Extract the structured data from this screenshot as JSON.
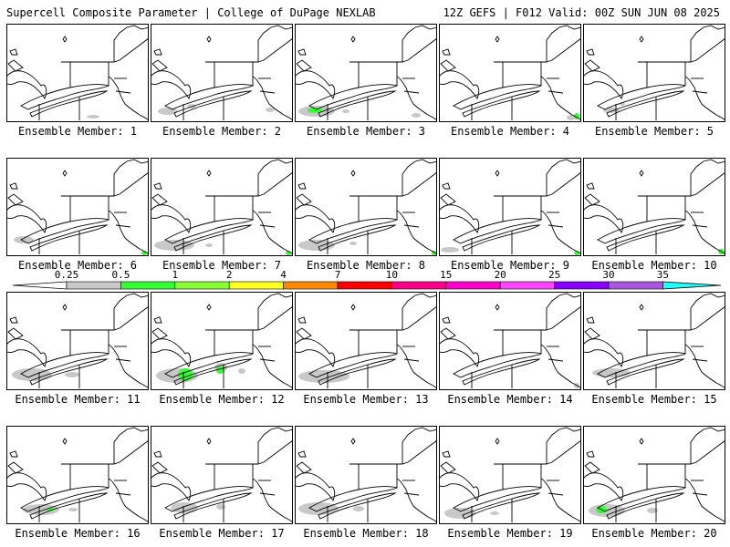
{
  "header": {
    "left": "Supercell Composite Parameter | College of DuPage NEXLAB",
    "right": "12Z GEFS | F012 Valid: 00Z SUN JUN 08 2025"
  },
  "member_label_prefix": "Ensemble Member:",
  "members": [
    {
      "id": 1,
      "label": "Ensemble Member: 1",
      "coverage": "minimal"
    },
    {
      "id": 2,
      "label": "Ensemble Member: 2",
      "coverage": "light"
    },
    {
      "id": 3,
      "label": "Ensemble Member: 3",
      "coverage": "light with 0.5-1 core"
    },
    {
      "id": 4,
      "label": "Ensemble Member: 4",
      "coverage": "minimal"
    },
    {
      "id": 5,
      "label": "Ensemble Member: 5",
      "coverage": "light"
    },
    {
      "id": 6,
      "label": "Ensemble Member: 6",
      "coverage": "light"
    },
    {
      "id": 7,
      "label": "Ensemble Member: 7",
      "coverage": "light"
    },
    {
      "id": 8,
      "label": "Ensemble Member: 8",
      "coverage": "light"
    },
    {
      "id": 9,
      "label": "Ensemble Member: 9",
      "coverage": "light"
    },
    {
      "id": 10,
      "label": "Ensemble Member: 10",
      "coverage": "minimal"
    },
    {
      "id": 11,
      "label": "Ensemble Member: 11",
      "coverage": "light"
    },
    {
      "id": 12,
      "label": "Ensemble Member: 12",
      "coverage": "moderate with 0.5-1 cores"
    },
    {
      "id": 13,
      "label": "Ensemble Member: 13",
      "coverage": "light"
    },
    {
      "id": 14,
      "label": "Ensemble Member: 14",
      "coverage": "minimal"
    },
    {
      "id": 15,
      "label": "Ensemble Member: 15",
      "coverage": "light"
    },
    {
      "id": 16,
      "label": "Ensemble Member: 16",
      "coverage": "light with small 0.5-1 spot"
    },
    {
      "id": 17,
      "label": "Ensemble Member: 17",
      "coverage": "light"
    },
    {
      "id": 18,
      "label": "Ensemble Member: 18",
      "coverage": "light"
    },
    {
      "id": 19,
      "label": "Ensemble Member: 19",
      "coverage": "light"
    },
    {
      "id": 20,
      "label": "Ensemble Member: 20",
      "coverage": "light with 0.5-1 core"
    }
  ],
  "colorbar": {
    "ticks": [
      "0.25",
      "0.5",
      "1",
      "2",
      "4",
      "7",
      "10",
      "15",
      "20",
      "25",
      "30",
      "35"
    ],
    "colors": [
      "#c8c8c8",
      "#33ff33",
      "#88ff33",
      "#ffff22",
      "#ff8800",
      "#ff0000",
      "#ff0088",
      "#ff00cc",
      "#ff44ff",
      "#8800ff",
      "#aa55dd"
    ],
    "left_arrow_color": "#ffffff",
    "right_arrow_color": "#22ffff"
  },
  "colors": {
    "fill_low": "#c8c8c8",
    "fill_mid": "#33ff33",
    "outline": "#000000"
  }
}
